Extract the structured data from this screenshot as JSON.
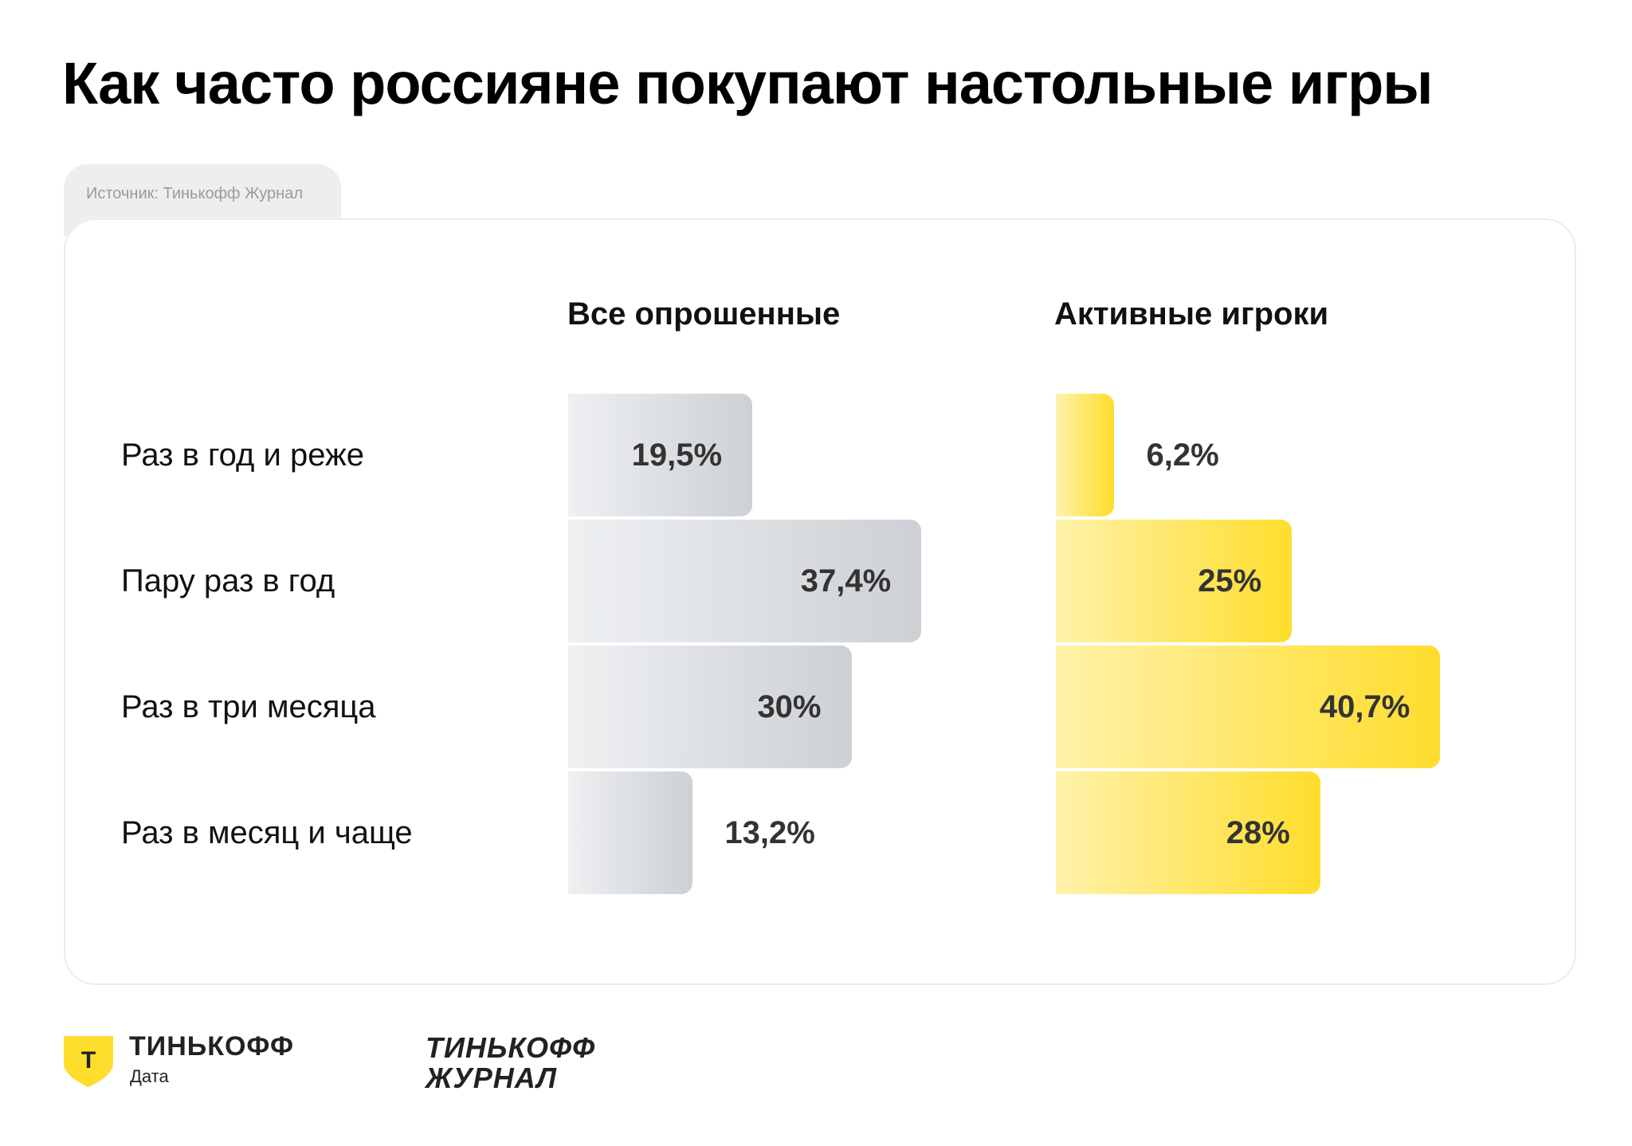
{
  "title": "Как часто россияне покупают настольные игры",
  "source": "Источник: Тинькофф Журнал",
  "chart_data": {
    "type": "bar",
    "orientation": "horizontal",
    "categories": [
      "Раз в год и реже",
      "Пару раз в год",
      "Раз в три месяца",
      "Раз в месяц и чаще"
    ],
    "series": [
      {
        "name": "Все опрошенные",
        "values": [
          19.5,
          37.4,
          30,
          13.2
        ],
        "labels": [
          "19,5%",
          "37,4%",
          "30%",
          "13,2%"
        ],
        "color": "#cdd0d4"
      },
      {
        "name": "Активные игроки",
        "values": [
          6.2,
          25,
          40.7,
          28
        ],
        "labels": [
          "6,2%",
          "25%",
          "40,7%",
          "28%"
        ],
        "color": "#ffdd2d"
      }
    ],
    "unit": "%",
    "xlim": [
      0,
      45
    ]
  },
  "footer": {
    "brand_name": "ТИНЬКОФФ",
    "brand_sub": "Дата",
    "brand_mark_letter": "Т",
    "brand_mark_color": "#ffdd2d",
    "journal_line1": "ТИНЬКОФФ",
    "journal_line2": "ЖУРНАЛ"
  }
}
